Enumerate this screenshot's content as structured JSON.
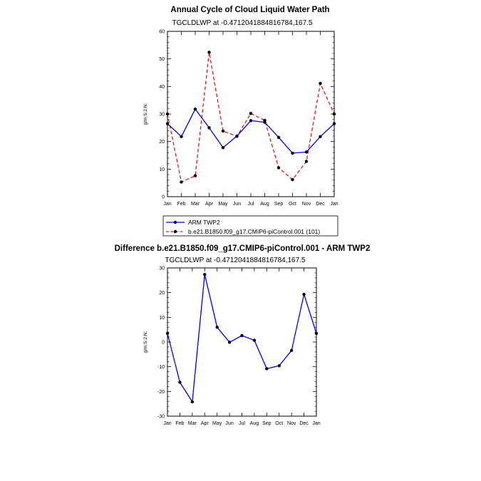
{
  "chart_data": [
    {
      "type": "line",
      "title": "Annual Cycle of Cloud Liquid Water Path",
      "subtitle": "TGCLDLWP at -0.4712041884816784,167.5",
      "ylabel": "g/m:S:2:N:",
      "xlabel": "",
      "categories": [
        "Jan",
        "Feb",
        "Mar",
        "Apr",
        "May",
        "Jun",
        "Jul",
        "Aug",
        "Sep",
        "Oct",
        "Nov",
        "Dec",
        "Jan"
      ],
      "ylim": [
        0,
        60
      ],
      "yticks": [
        0,
        10,
        20,
        30,
        40,
        50,
        60
      ],
      "series": [
        {
          "name": "ARM TWP2",
          "color": "#0000ff",
          "style": "solid",
          "values": [
            26.5,
            21.8,
            31.8,
            25.0,
            17.8,
            22.0,
            27.6,
            27.0,
            21.5,
            15.8,
            16.2,
            21.8,
            26.5
          ]
        },
        {
          "name": "b.e21.B1850.f09_g17.CMIP6-piControl.001 (101)",
          "color": "#e41a1c",
          "style": "dashed",
          "values": [
            30.0,
            5.3,
            7.6,
            52.4,
            23.8,
            21.9,
            30.2,
            27.7,
            10.5,
            6.2,
            12.8,
            41.1,
            30.0
          ]
        }
      ],
      "legend": "bottom"
    },
    {
      "type": "line",
      "title": "Difference b.e21.B1850.f09_g17.CMIP6-piControl.001 - ARM TWP2",
      "subtitle": "TGCLDLWP at -0.4712041884816784,167.5",
      "ylabel": "g/m:S:2:N:",
      "xlabel": "",
      "categories": [
        "Jan",
        "Feb",
        "Mar",
        "Apr",
        "May",
        "Jun",
        "Jul",
        "Aug",
        "Sep",
        "Oct",
        "Nov",
        "Dec",
        "Jan"
      ],
      "ylim": [
        -30,
        30
      ],
      "yticks": [
        -30,
        -20,
        -10,
        0,
        10,
        20,
        30
      ],
      "series": [
        {
          "name": "Difference",
          "color": "#0000ff",
          "style": "solid",
          "values": [
            3.5,
            -16.3,
            -24.2,
            27.4,
            6.0,
            -0.1,
            2.6,
            0.7,
            -10.8,
            -9.6,
            -3.4,
            19.3,
            3.5
          ]
        }
      ]
    }
  ]
}
